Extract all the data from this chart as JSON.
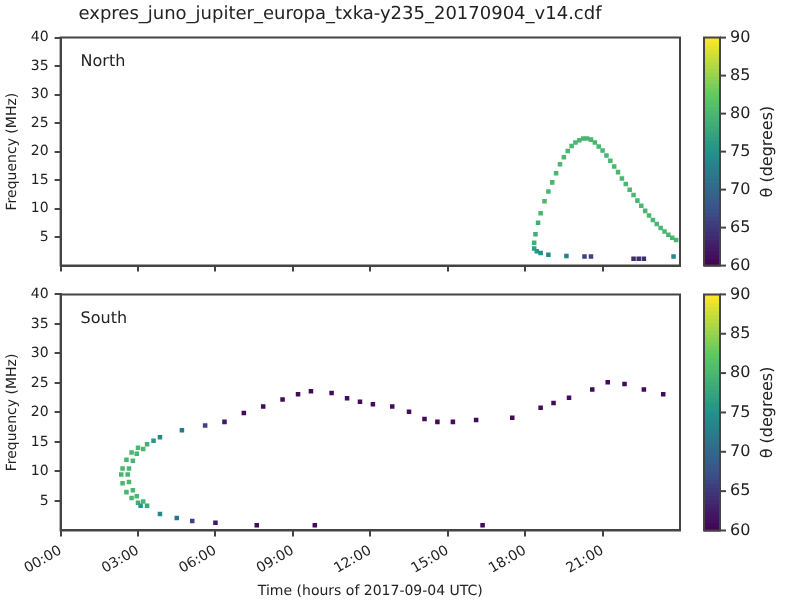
{
  "chart_data": [
    {
      "type": "scatter",
      "title": "expres_juno_jupiter_europa_txka-y235_20170904_v14.cdf",
      "ylabel": "Frequency (MHz)",
      "clabel": "θ (degrees)",
      "annotations": [
        "North"
      ],
      "xlim": [
        0,
        24
      ],
      "xticks": [
        {
          "value": 0,
          "label": null
        },
        {
          "value": 3,
          "label": null
        },
        {
          "value": 6,
          "label": null
        },
        {
          "value": 9,
          "label": null
        },
        {
          "value": 12,
          "label": null
        },
        {
          "value": 15,
          "label": null
        },
        {
          "value": 18,
          "label": null
        },
        {
          "value": 21,
          "label": null
        }
      ],
      "ylim": [
        0,
        40
      ],
      "yticks": [
        5,
        10,
        15,
        20,
        25,
        30,
        35,
        40
      ],
      "clim": [
        60,
        90
      ],
      "cticks": [
        60,
        65,
        70,
        75,
        80,
        85,
        90
      ],
      "grid": false,
      "tick_labels": "y",
      "marker": "square",
      "x": [
        18.35,
        18.45,
        18.6,
        18.9,
        19.6,
        20.3,
        20.55,
        22.2,
        22.4,
        22.6,
        23.75,
        18.35,
        18.4,
        18.5,
        18.6,
        18.75,
        18.9,
        19.05,
        19.2,
        19.35,
        19.5,
        19.65,
        19.8,
        19.95,
        20.1,
        20.25,
        20.4,
        20.55,
        20.7,
        20.85,
        21.0,
        21.15,
        21.3,
        21.45,
        21.6,
        21.75,
        21.9,
        22.05,
        22.2,
        22.35,
        22.5,
        22.65,
        22.8,
        22.95,
        23.1,
        23.25,
        23.4,
        23.55,
        23.7,
        23.85
      ],
      "values": [
        3.0,
        2.5,
        2.2,
        1.9,
        1.7,
        1.6,
        1.6,
        1.2,
        1.2,
        1.2,
        1.6,
        4.0,
        5.5,
        7.5,
        9.2,
        11.3,
        13.0,
        14.6,
        16.2,
        17.8,
        19.0,
        20.1,
        21.0,
        21.6,
        22.0,
        22.3,
        22.3,
        22.1,
        21.6,
        20.9,
        20.2,
        19.3,
        18.4,
        17.4,
        16.4,
        15.3,
        14.3,
        13.3,
        12.4,
        11.4,
        10.5,
        9.6,
        8.8,
        8.0,
        7.3,
        6.6,
        6.0,
        5.4,
        4.9,
        4.5
      ],
      "cvalues": [
        77,
        76,
        75,
        74,
        73,
        66,
        66,
        64,
        64,
        64,
        74,
        79,
        79,
        79,
        80,
        80,
        80,
        80,
        80,
        80,
        80,
        80,
        80,
        80,
        80,
        80,
        80,
        80,
        80,
        80,
        80,
        80,
        80,
        80,
        80,
        80,
        80,
        80,
        80,
        80,
        80,
        80,
        80,
        80,
        80,
        80,
        80,
        80,
        80,
        80
      ]
    },
    {
      "type": "scatter",
      "xlabel": "Time (hours of 2017-09-04 UTC)",
      "ylabel": "Frequency (MHz)",
      "clabel": "θ (degrees)",
      "annotations": [
        "South"
      ],
      "xlim": [
        0,
        24
      ],
      "xticks": [
        {
          "value": 0,
          "label": "00:00"
        },
        {
          "value": 3,
          "label": "03:00"
        },
        {
          "value": 6,
          "label": "06:00"
        },
        {
          "value": 9,
          "label": "09:00"
        },
        {
          "value": 12,
          "label": "12:00"
        },
        {
          "value": 15,
          "label": "15:00"
        },
        {
          "value": 18,
          "label": "18:00"
        },
        {
          "value": 21,
          "label": "21:00"
        }
      ],
      "ylim": [
        0,
        40
      ],
      "yticks": [
        5,
        10,
        15,
        20,
        25,
        30,
        35,
        40
      ],
      "clim": [
        60,
        90
      ],
      "cticks": [
        60,
        65,
        70,
        75,
        80,
        85,
        90
      ],
      "grid": false,
      "marker": "square",
      "x": [
        3.35,
        3.0,
        2.75,
        2.55,
        2.4,
        2.35,
        2.4,
        2.55,
        2.75,
        3.0,
        3.35,
        3.2,
        2.95,
        2.8,
        2.65,
        2.6,
        2.65,
        2.8,
        2.95,
        3.2,
        3.6,
        3.85,
        4.7,
        5.6,
        6.35,
        7.1,
        7.85,
        8.6,
        9.2,
        9.7,
        10.5,
        11.1,
        11.6,
        12.1,
        12.85,
        13.5,
        14.1,
        14.6,
        15.2,
        16.1,
        17.5,
        18.6,
        19.1,
        19.7,
        20.6,
        21.2,
        21.85,
        22.6,
        23.35,
        3.1,
        3.85,
        4.5,
        5.1,
        6.0,
        7.6,
        9.85,
        16.35
      ],
      "values": [
        14.6,
        14.0,
        13.2,
        12.0,
        10.5,
        9.5,
        8.0,
        6.5,
        5.5,
        4.7,
        4.2,
        13.8,
        13.0,
        11.8,
        10.5,
        9.5,
        8.2,
        6.8,
        5.8,
        4.9,
        15.2,
        15.8,
        17.0,
        17.8,
        18.4,
        19.9,
        21.0,
        22.2,
        23.1,
        23.6,
        23.3,
        22.4,
        21.8,
        21.4,
        21.0,
        20.1,
        18.9,
        18.4,
        18.4,
        18.7,
        19.1,
        20.8,
        21.6,
        22.5,
        23.9,
        25.1,
        24.8,
        23.9,
        23.1,
        4.2,
        2.8,
        2.1,
        1.6,
        1.3,
        0.9,
        0.9,
        0.9
      ],
      "cvalues": [
        79,
        80,
        80,
        80,
        80,
        80,
        80,
        80,
        80,
        79,
        78,
        80,
        80,
        80,
        80,
        80,
        80,
        80,
        80,
        80,
        76,
        74,
        72,
        66,
        62,
        61,
        61,
        61,
        61,
        61,
        61,
        61,
        61,
        61,
        61,
        61,
        61,
        61,
        61,
        61,
        61,
        61,
        61,
        61,
        61,
        61,
        61,
        61,
        61,
        76,
        74,
        72,
        66,
        62,
        61,
        61,
        61
      ]
    }
  ]
}
